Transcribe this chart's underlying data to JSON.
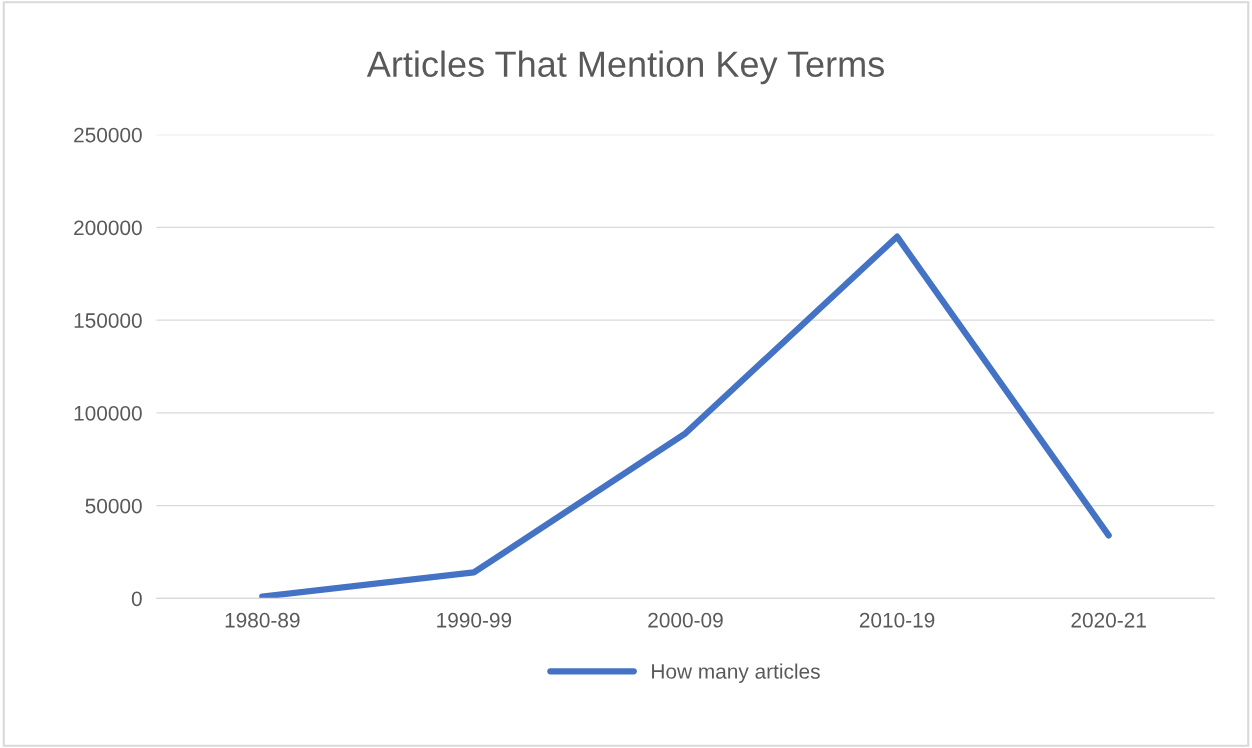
{
  "chart_data": {
    "type": "line",
    "title": "Articles That Mention Key Terms",
    "categories": [
      "1980-89",
      "1990-99",
      "2000-09",
      "2010-19",
      "2020-21"
    ],
    "series": [
      {
        "name": "How many articles",
        "color": "#4472c4",
        "values": [
          1000,
          14000,
          89000,
          195000,
          34000
        ]
      }
    ],
    "ylim": [
      0,
      250000
    ],
    "yticks": [
      0,
      50000,
      100000,
      150000,
      200000,
      250000
    ],
    "grid": "y",
    "legend": "bottom",
    "marker": "none",
    "line_style": "solid"
  }
}
